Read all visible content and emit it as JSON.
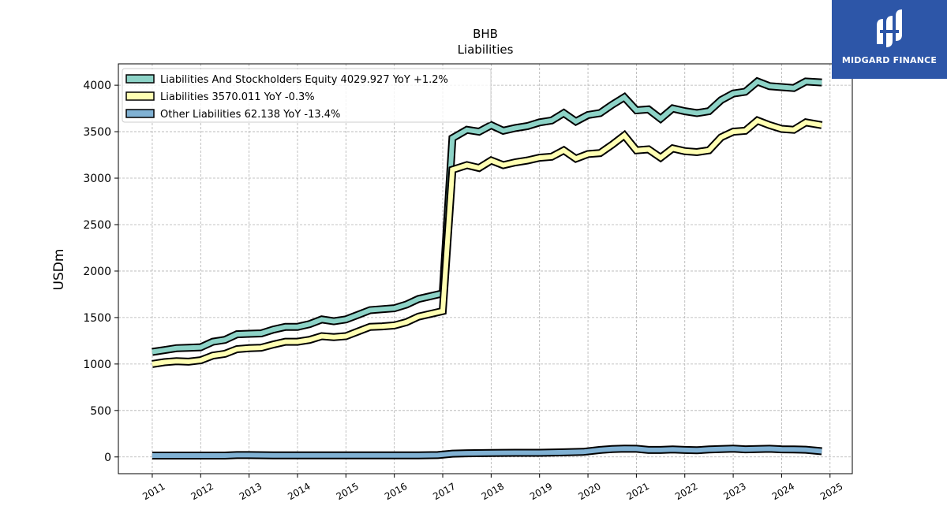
{
  "chart_data": {
    "type": "line",
    "title": "BHB",
    "subtitle": "Liabilities",
    "ylabel": "USDm",
    "xlabel": "",
    "ylim": [
      -180,
      4230
    ],
    "xlim": [
      2010.3,
      2025.46
    ],
    "yticks": [
      0,
      500,
      1000,
      1500,
      2000,
      2500,
      3000,
      3500,
      4000
    ],
    "xticks": [
      "2011",
      "2012",
      "2013",
      "2014",
      "2015",
      "2016",
      "2017",
      "2018",
      "2019",
      "2020",
      "2021",
      "2022",
      "2023",
      "2024",
      "2025"
    ],
    "grid": true,
    "legend_position": "top-left",
    "series": [
      {
        "name": "Liabilities And Stockholders Equity",
        "legend": "Liabilities And Stockholders Equity  4029.927 YoY +1.2%",
        "color": "#8dd3c7",
        "x": [
          2011.0,
          2011.25,
          2011.5,
          2011.75,
          2012.0,
          2012.25,
          2012.5,
          2012.75,
          2013.0,
          2013.25,
          2013.5,
          2013.75,
          2014.0,
          2014.25,
          2014.5,
          2014.75,
          2015.0,
          2015.25,
          2015.5,
          2015.75,
          2016.0,
          2016.25,
          2016.5,
          2016.75,
          2017.0,
          2017.2,
          2017.5,
          2017.75,
          2018.0,
          2018.25,
          2018.5,
          2018.75,
          2019.0,
          2019.25,
          2019.5,
          2019.75,
          2020.0,
          2020.25,
          2020.5,
          2020.75,
          2021.0,
          2021.25,
          2021.5,
          2021.75,
          2022.0,
          2022.25,
          2022.5,
          2022.75,
          2023.0,
          2023.25,
          2023.5,
          2023.75,
          2024.0,
          2024.25,
          2024.5,
          2024.83
        ],
        "values": [
          1130,
          1150,
          1170,
          1175,
          1180,
          1240,
          1260,
          1320,
          1325,
          1330,
          1370,
          1400,
          1400,
          1430,
          1480,
          1460,
          1480,
          1530,
          1580,
          1590,
          1600,
          1640,
          1700,
          1730,
          1760,
          3430,
          3520,
          3500,
          3570,
          3510,
          3540,
          3560,
          3600,
          3620,
          3700,
          3610,
          3680,
          3700,
          3790,
          3870,
          3730,
          3740,
          3640,
          3750,
          3720,
          3700,
          3720,
          3840,
          3910,
          3930,
          4040,
          3990,
          3980,
          3970,
          4040,
          4030
        ]
      },
      {
        "name": "Liabilities",
        "legend": "Liabilities  3570.011 YoY -0.3%",
        "color": "#ffffb3",
        "x": [
          2011.0,
          2011.25,
          2011.5,
          2011.75,
          2012.0,
          2012.25,
          2012.5,
          2012.75,
          2013.0,
          2013.25,
          2013.5,
          2013.75,
          2014.0,
          2014.25,
          2014.5,
          2014.75,
          2015.0,
          2015.25,
          2015.5,
          2015.75,
          2016.0,
          2016.25,
          2016.5,
          2016.75,
          2017.0,
          2017.2,
          2017.5,
          2017.75,
          2018.0,
          2018.25,
          2018.5,
          2018.75,
          2019.0,
          2019.25,
          2019.5,
          2019.75,
          2020.0,
          2020.25,
          2020.5,
          2020.75,
          2021.0,
          2021.25,
          2021.5,
          2021.75,
          2022.0,
          2022.25,
          2022.5,
          2022.75,
          2023.0,
          2023.25,
          2023.5,
          2023.75,
          2024.0,
          2024.25,
          2024.5,
          2024.83
        ],
        "values": [
          1000,
          1020,
          1030,
          1025,
          1040,
          1090,
          1110,
          1160,
          1170,
          1175,
          1210,
          1240,
          1240,
          1260,
          1300,
          1290,
          1300,
          1350,
          1400,
          1405,
          1415,
          1450,
          1510,
          1540,
          1570,
          3090,
          3140,
          3110,
          3190,
          3140,
          3170,
          3190,
          3220,
          3230,
          3300,
          3210,
          3260,
          3270,
          3360,
          3460,
          3300,
          3310,
          3220,
          3320,
          3290,
          3280,
          3300,
          3440,
          3500,
          3510,
          3620,
          3570,
          3530,
          3520,
          3600,
          3570
        ]
      },
      {
        "name": "Other Liabilities",
        "legend": "Other Liabilities  62.138 YoY -13.4%",
        "color": "#80b1d3",
        "x": [
          2011.0,
          2011.5,
          2012.0,
          2012.5,
          2012.75,
          2013.0,
          2013.5,
          2014.0,
          2014.5,
          2015.0,
          2015.5,
          2016.0,
          2016.5,
          2016.9,
          2017.2,
          2017.5,
          2018.0,
          2018.5,
          2019.0,
          2019.5,
          2019.9,
          2020.25,
          2020.5,
          2020.75,
          2021.0,
          2021.25,
          2021.5,
          2021.75,
          2022.0,
          2022.25,
          2022.5,
          2022.75,
          2023.0,
          2023.25,
          2023.5,
          2023.75,
          2024.0,
          2024.25,
          2024.5,
          2024.83
        ],
        "values": [
          15,
          15,
          15,
          15,
          20,
          20,
          18,
          18,
          18,
          18,
          18,
          18,
          18,
          20,
          35,
          40,
          42,
          45,
          45,
          50,
          55,
          75,
          85,
          90,
          88,
          75,
          75,
          80,
          75,
          72,
          80,
          85,
          90,
          82,
          85,
          88,
          82,
          80,
          78,
          62
        ]
      }
    ]
  },
  "logo": {
    "text": "MIDGARD FINANCE",
    "background": "#2d56a8"
  }
}
